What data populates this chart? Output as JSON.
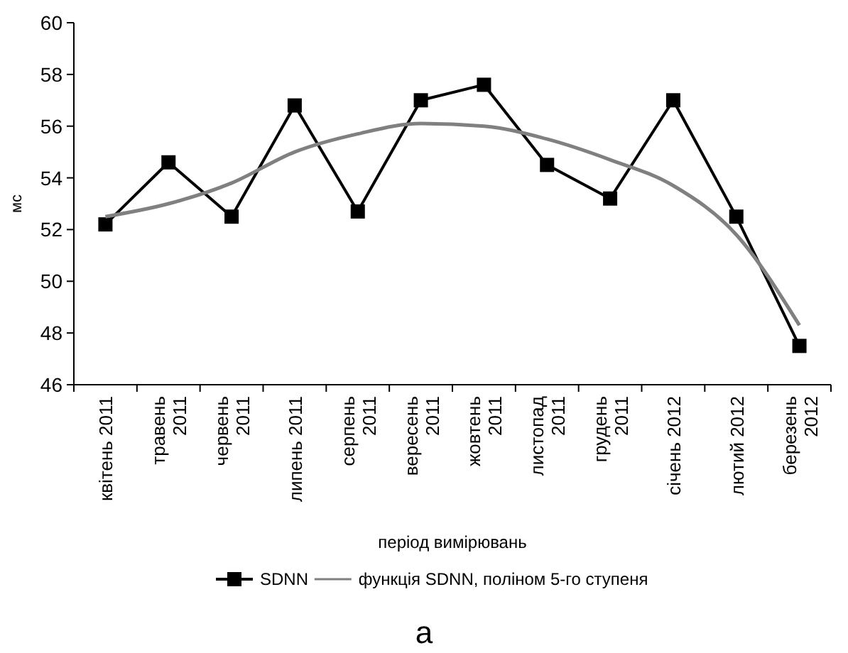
{
  "chart_data": {
    "type": "line",
    "xlabel": "період вимірювань",
    "ylabel": "мс",
    "legend": "bottom",
    "annotations": [
      "а"
    ],
    "categories": [
      "квітень 2011",
      "травень\n2011",
      "червень\n2011",
      "липень 2011",
      "серпень\n2011",
      "вересень\n2011",
      "жовтень\n2011",
      "листопад\n2011",
      "грудень\n2011",
      "січень 2012",
      "лютий 2012",
      "березень\n2012"
    ],
    "ylim": [
      46,
      60
    ],
    "yticks": [
      46,
      48,
      50,
      52,
      54,
      56,
      58,
      60
    ],
    "series": [
      {
        "name": "SDNN",
        "color": "#000000",
        "marker": "square",
        "values": [
          52.2,
          54.6,
          52.5,
          56.8,
          52.7,
          57.0,
          57.6,
          54.5,
          53.2,
          57.0,
          52.5,
          47.5
        ]
      },
      {
        "name": "функція SDNN, поліном 5-го ступеня",
        "color": "#808080",
        "marker": "none",
        "values": [
          52.5,
          53.0,
          53.8,
          55.0,
          55.7,
          56.1,
          56.0,
          55.5,
          54.7,
          53.7,
          51.8,
          48.3
        ]
      }
    ]
  }
}
